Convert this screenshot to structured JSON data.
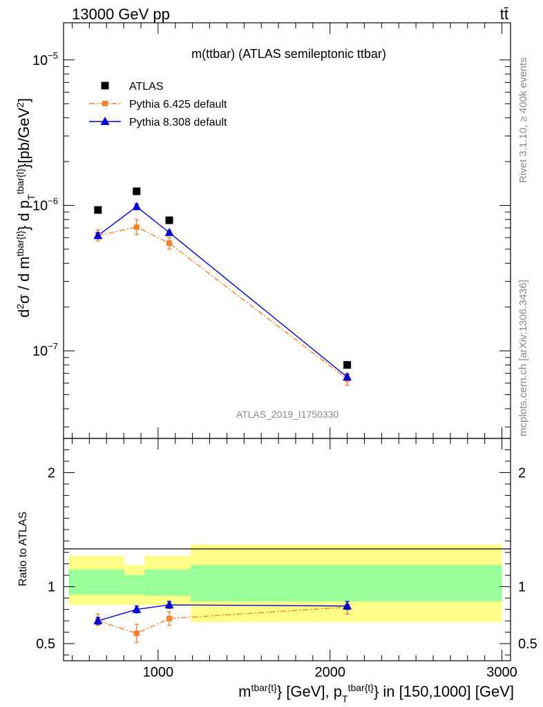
{
  "header": {
    "energy_label": "13000 GeV pp",
    "process_label": "tt̄"
  },
  "side_labels": {
    "rivet": "Rivet 3.1.10, ≥ 400k events",
    "mcplots": "mcplots.cern.ch [arXiv:1306.3436]"
  },
  "chart_data": [
    {
      "type": "scatter",
      "title": "m(ttbar) (ATLAS semileptonic ttbar)",
      "watermark": "ATLAS_2019_I1750330",
      "ylabel": "d²σ / d m^{tbar{t}} d p_T^{tbar{t}} [pb/GeV²]",
      "yscale": "log",
      "ylim": [
        2.5e-08,
        1.8e-05
      ],
      "xlim": [
        450,
        3050
      ],
      "y_ticks": [
        {
          "value": 1e-07,
          "mant": "10",
          "exp": "−7"
        },
        {
          "value": 1e-06,
          "mant": "10",
          "exp": "−6"
        },
        {
          "value": 1e-05,
          "mant": "10",
          "exp": "−5"
        }
      ],
      "legend_position": "top-left",
      "series": [
        {
          "name": "ATLAS",
          "color": "#000000",
          "marker": "square",
          "x": [
            650,
            875,
            1065,
            2100
          ],
          "y": [
            9.3e-07,
            1.25e-06,
            7.9e-07,
            8e-08
          ]
        },
        {
          "name": "Pythia 6.425 default",
          "color": "#ff7f2a",
          "marker": "square",
          "line": "dashdot",
          "x": [
            650,
            875,
            1065,
            2100
          ],
          "y": [
            6.2e-07,
            7.1e-07,
            5.5e-07,
            6.4e-08
          ],
          "y_err": [
            [
              5.7e-07,
              6.8e-07
            ],
            [
              6.3e-07,
              8e-07
            ],
            [
              5e-07,
              6e-07
            ],
            [
              5.8e-08,
              7e-08
            ]
          ]
        },
        {
          "name": "Pythia 8.308 default",
          "color": "#0000dd",
          "marker": "triangle",
          "line": "solid",
          "x": [
            650,
            875,
            1065,
            2100
          ],
          "y": [
            6.2e-07,
            9.8e-07,
            6.5e-07,
            6.6e-08
          ],
          "y_err": [
            [
              5.9e-07,
              6.5e-07
            ],
            [
              9.4e-07,
              1.02e-06
            ],
            [
              6.3e-07,
              6.7e-07
            ],
            [
              6.3e-08,
              6.9e-08
            ]
          ]
        }
      ]
    },
    {
      "type": "scatter",
      "ylabel": "Ratio to ATLAS",
      "xlabel": "m^{tbar{t}} [GeV], p_T^{tbar{t}} in [150,1000] [GeV]",
      "ylim": [
        0.35,
        2.3
      ],
      "xlim": [
        450,
        3050
      ],
      "x_ticks": [
        1000,
        2000,
        3000
      ],
      "y_ticks": [
        0.5,
        1,
        2
      ],
      "uncertainty_bands": [
        {
          "x0": 480,
          "x1": 805,
          "green": [
            0.93,
            1.15
          ],
          "yellow": [
            0.84,
            1.27
          ]
        },
        {
          "x0": 805,
          "x1": 920,
          "green": [
            0.93,
            1.1
          ],
          "yellow": [
            0.84,
            1.19
          ]
        },
        {
          "x0": 920,
          "x1": 1190,
          "green": [
            0.92,
            1.15
          ],
          "yellow": [
            0.84,
            1.27
          ]
        },
        {
          "x0": 1190,
          "x1": 3000,
          "green": [
            0.87,
            1.19
          ],
          "yellow": [
            0.69,
            1.37
          ]
        }
      ],
      "reference_line": 1,
      "series": [
        {
          "name": "Pythia 6.425 default",
          "color": "#ff7f2a",
          "marker": "square",
          "line": "dashdot",
          "x": [
            650,
            875,
            1065,
            2100
          ],
          "y": [
            0.7,
            0.59,
            0.72,
            0.82
          ],
          "y_err": [
            [
              0.66,
              0.76
            ],
            [
              0.51,
              0.67
            ],
            [
              0.66,
              0.78
            ],
            [
              0.76,
              0.87
            ]
          ]
        },
        {
          "name": "Pythia 8.308 default",
          "color": "#0000dd",
          "marker": "triangle",
          "line": "solid",
          "x": [
            650,
            875,
            1065,
            2100
          ],
          "y": [
            0.7,
            0.8,
            0.84,
            0.83
          ],
          "y_err": [
            [
              0.67,
              0.73
            ],
            [
              0.77,
              0.83
            ],
            [
              0.81,
              0.87
            ],
            [
              0.8,
              0.87
            ]
          ]
        }
      ]
    }
  ]
}
